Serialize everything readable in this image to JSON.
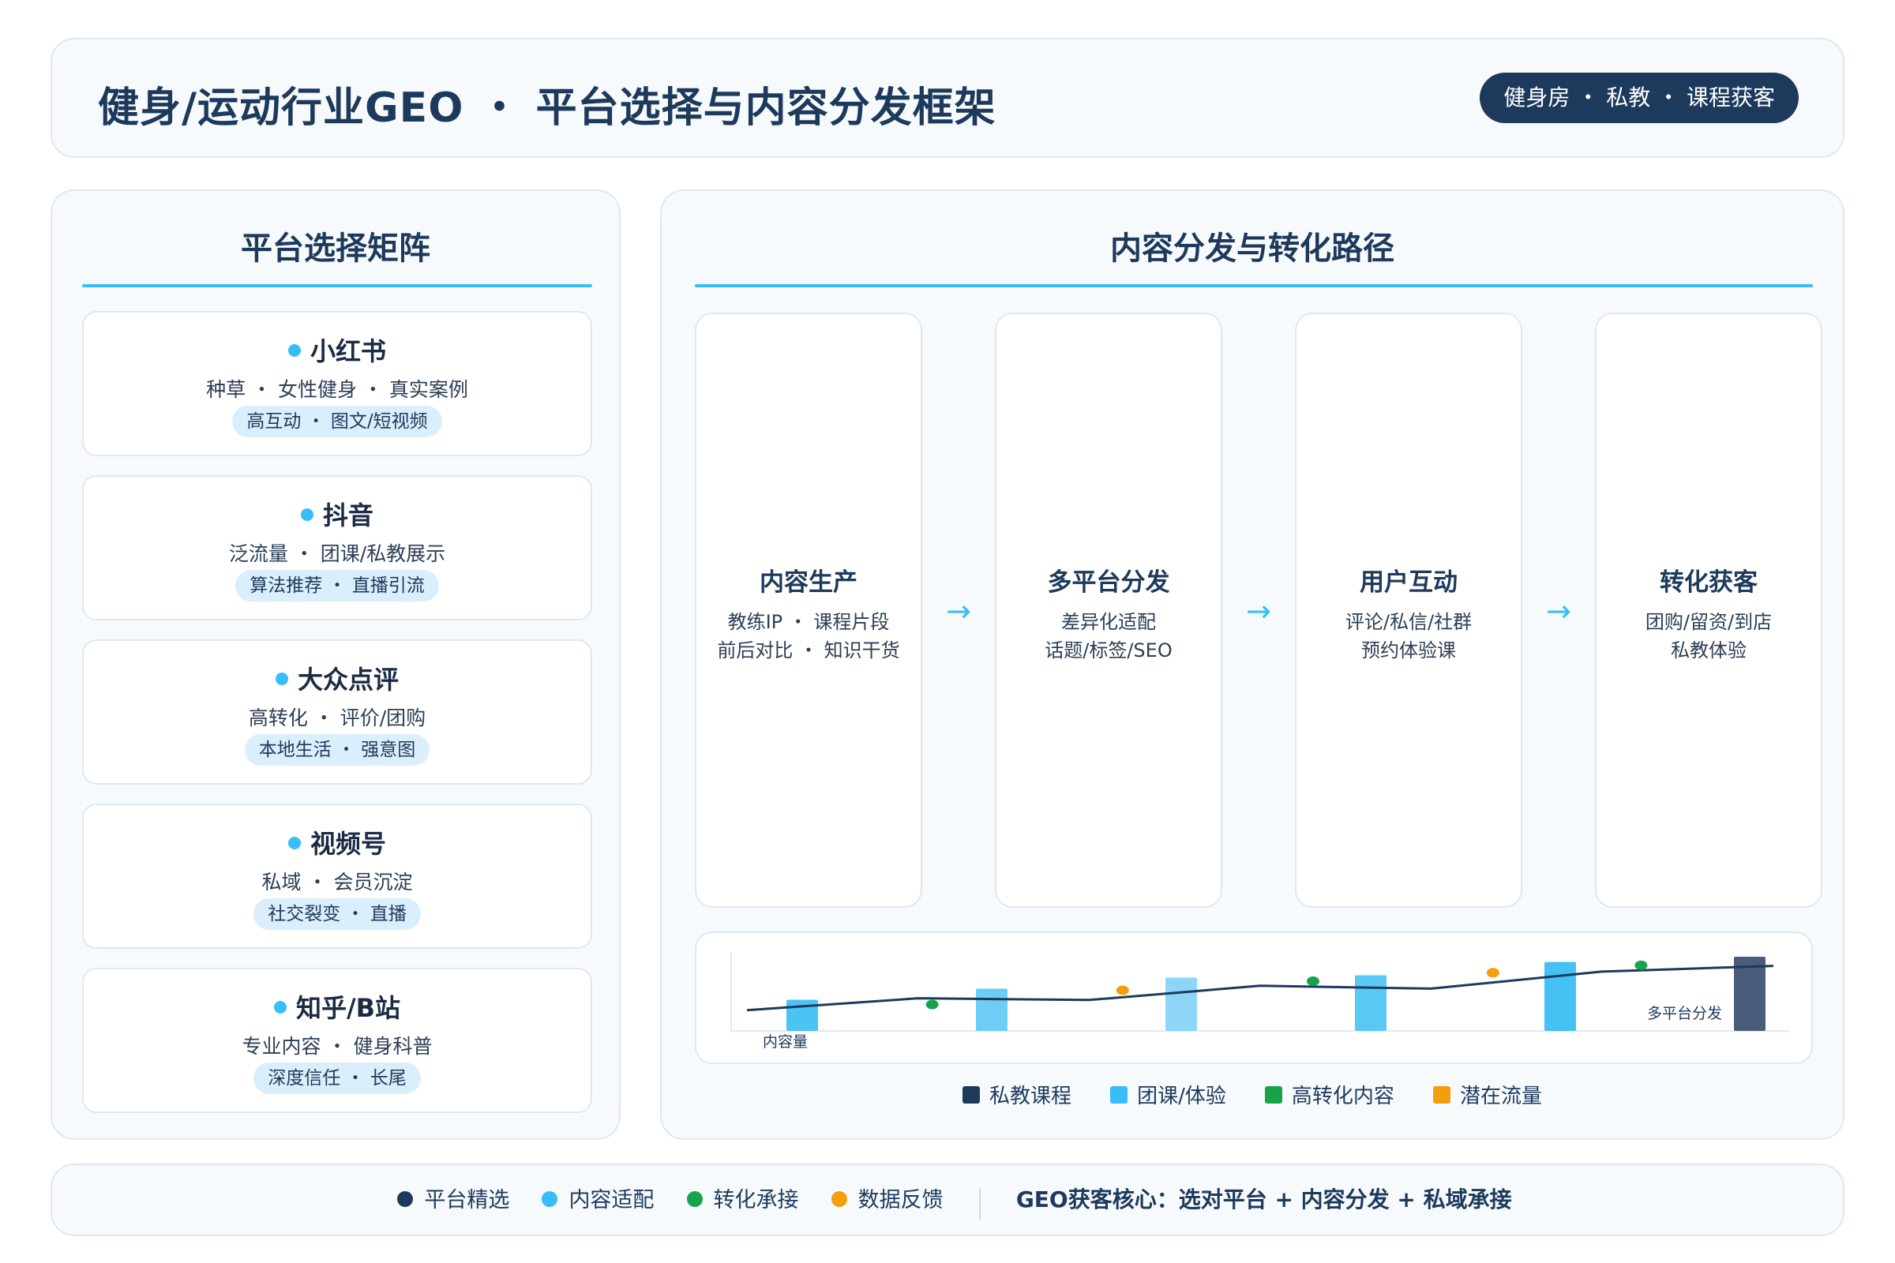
{
  "header": {
    "title": "健身/运动行业GEO ・ 平台选择与内容分发框架",
    "badge": "健身房 ・ 私教 ・ 课程获客"
  },
  "left_panel": {
    "title": "平台选择矩阵",
    "platforms": [
      {
        "name": "小红书",
        "desc": "种草 ・ 女性健身 ・ 真实案例",
        "tag": "高互动 ・ 图文/短视频"
      },
      {
        "name": "抖音",
        "desc": "泛流量 ・ 团课/私教展示",
        "tag": "算法推荐 ・ 直播引流"
      },
      {
        "name": "大众点评",
        "desc": "高转化 ・ 评价/团购",
        "tag": "本地生活 ・ 强意图"
      },
      {
        "name": "视频号",
        "desc": "私域 ・ 会员沉淀",
        "tag": "社交裂变 ・ 直播"
      },
      {
        "name": "知乎/B站",
        "desc": "专业内容 ・ 健身科普",
        "tag": "深度信任 ・ 长尾"
      }
    ]
  },
  "right_panel": {
    "title": "内容分发与转化路径",
    "stages": [
      {
        "title": "内容生产",
        "line1": "教练IP ・ 课程片段",
        "line2": "前后对比 ・ 知识干货"
      },
      {
        "title": "多平台分发",
        "line1": "差异化适配",
        "line2": "话题/标签/SEO"
      },
      {
        "title": "用户互动",
        "line1": "评论/私信/社群",
        "line2": "预约体验课"
      },
      {
        "title": "转化获客",
        "line1": "团购/留资/到店",
        "line2": "私教体验"
      }
    ],
    "arrow": "→",
    "legend": [
      {
        "label": "私教课程",
        "color": "#1d3a5c"
      },
      {
        "label": "团课/体验",
        "color": "#38bdf8"
      },
      {
        "label": "高转化内容",
        "color": "#16a34a"
      },
      {
        "label": "潜在流量",
        "color": "#f59e0b"
      }
    ]
  },
  "chart_data": {
    "type": "bar",
    "xlabel": "内容量",
    "annotation": "多平台分发",
    "bars": [
      {
        "value": 0.42,
        "color": "#4cc3f5"
      },
      {
        "value": 0.57,
        "color": "#6dcdf6"
      },
      {
        "value": 0.72,
        "color": "#8ed6f8"
      },
      {
        "value": 0.75,
        "color": "#5ac8f5"
      },
      {
        "value": 0.93,
        "color": "#45c1f4"
      },
      {
        "value": 1.0,
        "color": "#4a5c7a"
      }
    ],
    "line": [
      0.17,
      0.38,
      0.35,
      0.6,
      0.55,
      0.85,
      0.95
    ],
    "dots": [
      {
        "x": 0.19,
        "y": 0.27,
        "color": "#16a34a"
      },
      {
        "x": 0.37,
        "y": 0.52,
        "color": "#f59e0b"
      },
      {
        "x": 0.55,
        "y": 0.68,
        "color": "#16a34a"
      },
      {
        "x": 0.72,
        "y": 0.83,
        "color": "#f59e0b"
      },
      {
        "x": 0.86,
        "y": 0.96,
        "color": "#16a34a"
      }
    ]
  },
  "footer": {
    "legend": [
      {
        "label": "平台精选",
        "color": "#1d3a5c"
      },
      {
        "label": "内容适配",
        "color": "#38bdf8"
      },
      {
        "label": "转化承接",
        "color": "#16a34a"
      },
      {
        "label": "数据反馈",
        "color": "#f59e0b"
      }
    ],
    "core": "GEO获客核心：选对平台 + 内容分发 + 私域承接"
  }
}
